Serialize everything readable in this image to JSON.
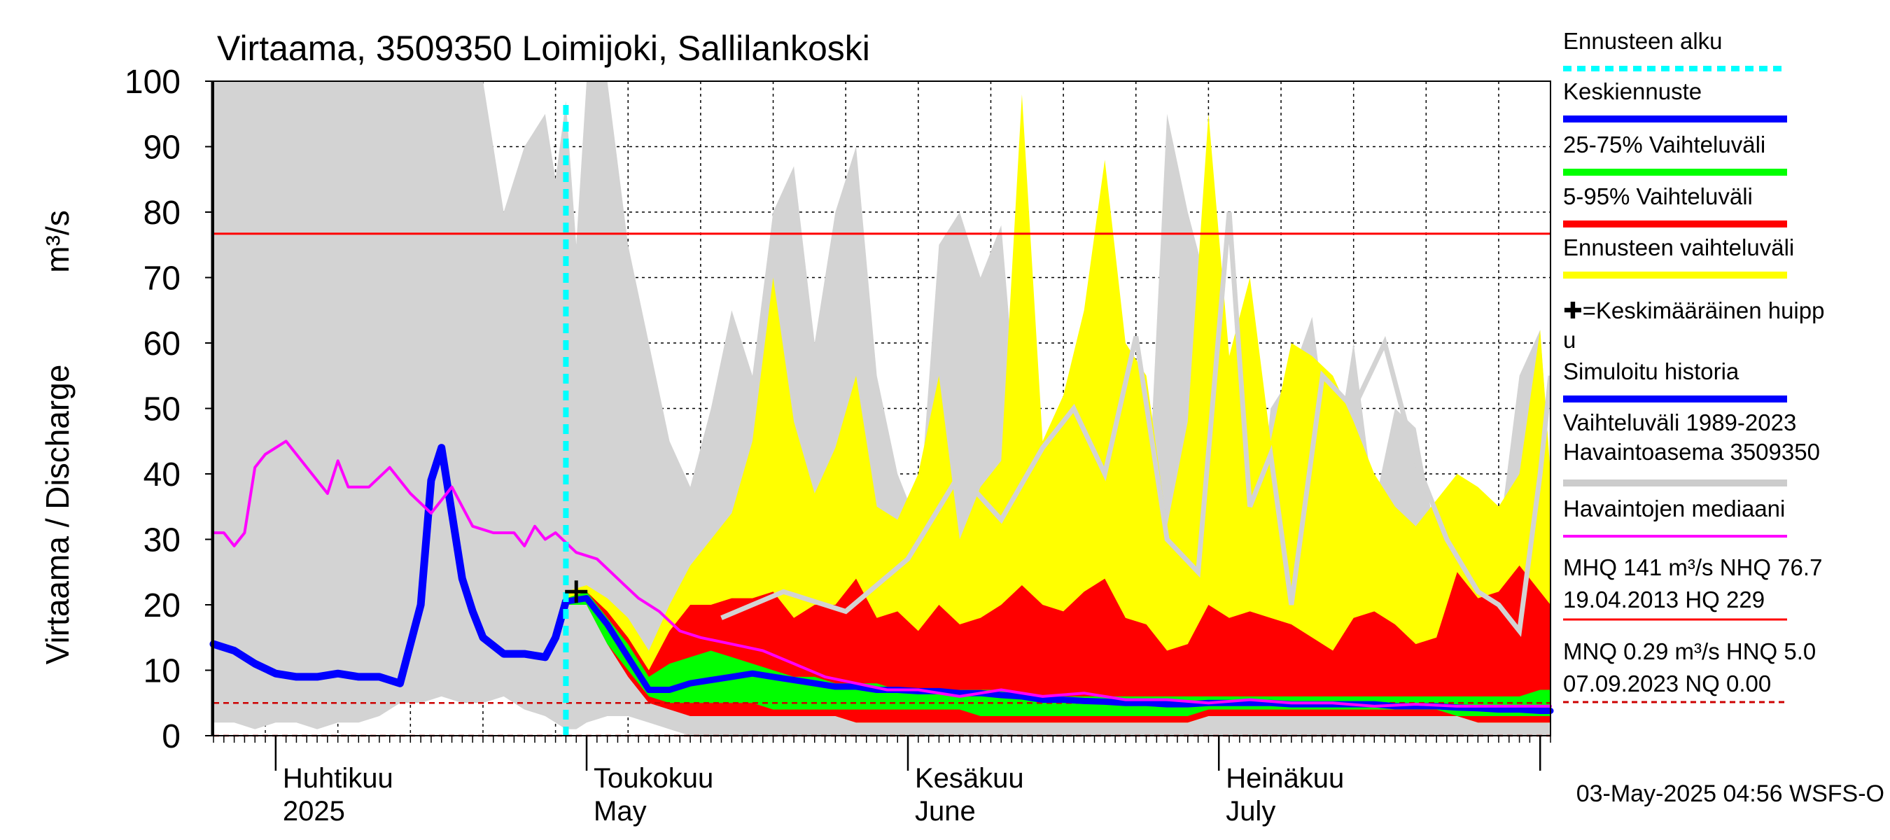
{
  "chart_data": {
    "type": "area",
    "title": "Virtaama, 3509350 Loimijoki, Sallilankoski",
    "ylabel": "Virtaama / Discharge",
    "yunit": "m³/s",
    "ylim": [
      0,
      100
    ],
    "yticks": [
      0,
      10,
      20,
      30,
      40,
      50,
      60,
      70,
      80,
      90,
      100
    ],
    "xlim": [
      "2025-03-26",
      "2025-08-02"
    ],
    "month_labels": [
      {
        "fi": "Huhtikuu",
        "en": "2025",
        "date": "2025-04-01"
      },
      {
        "fi": "Toukokuu",
        "en": "May",
        "date": "2025-05-01"
      },
      {
        "fi": "Kesäkuu",
        "en": "June",
        "date": "2025-06-01"
      },
      {
        "fi": "Heinäkuu",
        "en": "July",
        "date": "2025-07-01"
      }
    ],
    "forecast_start": "2025-04-29",
    "mean_peak": {
      "date": "2025-04-30",
      "value": 22
    },
    "reference_lines": [
      {
        "name": "NHQ",
        "value": 76.7,
        "style": "solid",
        "color": "#ff0000"
      },
      {
        "name": "HNQ",
        "value": 5.0,
        "style": "dashed",
        "color": "#cc0000"
      },
      {
        "name": "NQ",
        "value": 0.0,
        "style": "dashed",
        "color": "#cc0000"
      }
    ],
    "history_range": {
      "name": "Vaihteluväli 1989-2023 Havaintoasema 3509350",
      "x": [
        "2025-03-26",
        "2025-03-28",
        "2025-03-30",
        "2025-04-01",
        "2025-04-03",
        "2025-04-05",
        "2025-04-07",
        "2025-04-09",
        "2025-04-11",
        "2025-04-13",
        "2025-04-15",
        "2025-04-17",
        "2025-04-19",
        "2025-04-21",
        "2025-04-23",
        "2025-04-25",
        "2025-04-27",
        "2025-04-28",
        "2025-04-29",
        "2025-04-30",
        "2025-05-01",
        "2025-05-03",
        "2025-05-05",
        "2025-05-07",
        "2025-05-09",
        "2025-05-11",
        "2025-05-13",
        "2025-05-15",
        "2025-05-17",
        "2025-05-19",
        "2025-05-21",
        "2025-05-23",
        "2025-05-25",
        "2025-05-27",
        "2025-05-29",
        "2025-05-31",
        "2025-06-02",
        "2025-06-04",
        "2025-06-06",
        "2025-06-08",
        "2025-06-10",
        "2025-06-12",
        "2025-06-14",
        "2025-06-16",
        "2025-06-18",
        "2025-06-20",
        "2025-06-22",
        "2025-06-24",
        "2025-06-26",
        "2025-06-28",
        "2025-06-30",
        "2025-07-02",
        "2025-07-04",
        "2025-07-06",
        "2025-07-08",
        "2025-07-10",
        "2025-07-12",
        "2025-07-14",
        "2025-07-16",
        "2025-07-18",
        "2025-07-20",
        "2025-07-22",
        "2025-07-24",
        "2025-07-26",
        "2025-07-28",
        "2025-07-30",
        "2025-08-01",
        "2025-08-02"
      ],
      "low": [
        2,
        2,
        1,
        2,
        2,
        1,
        2,
        2,
        3,
        5,
        5,
        6,
        5,
        5,
        6,
        4,
        3,
        2,
        1,
        1,
        2,
        3,
        3,
        2,
        1,
        0,
        0,
        0,
        0,
        0,
        0,
        0,
        0,
        0,
        0,
        0,
        0,
        0,
        0,
        0,
        0,
        0,
        0,
        0,
        0,
        0,
        0,
        0,
        0,
        0,
        0,
        0,
        0,
        0,
        0,
        0,
        0,
        0,
        0,
        0,
        0,
        0,
        0,
        0,
        0,
        0,
        0,
        0
      ],
      "high": [
        100,
        100,
        100,
        100,
        100,
        100,
        100,
        100,
        100,
        100,
        100,
        100,
        100,
        100,
        80,
        90,
        95,
        85,
        97,
        75,
        100,
        100,
        75,
        60,
        45,
        38,
        50,
        65,
        55,
        80,
        87,
        60,
        80,
        90,
        55,
        40,
        32,
        75,
        80,
        70,
        78,
        40,
        28,
        35,
        55,
        68,
        38,
        30,
        95,
        80,
        68,
        55,
        20,
        50,
        55,
        64,
        40,
        60,
        35,
        50,
        47,
        30,
        33,
        20,
        30,
        55,
        62,
        40
      ],
      "median": [
        null,
        null,
        null,
        null,
        null,
        null,
        null,
        null,
        null,
        null,
        null,
        null,
        null,
        null,
        null,
        null,
        null,
        null,
        null,
        null,
        null,
        null,
        null,
        null,
        null,
        null,
        null,
        null,
        null,
        null,
        null,
        null,
        null,
        null,
        null,
        null,
        null,
        null,
        null,
        null,
        null,
        null,
        null,
        null,
        null,
        null,
        null,
        null,
        null,
        null,
        null,
        null,
        null,
        null,
        null,
        null,
        null,
        null,
        null,
        null,
        null,
        null,
        null,
        null,
        null,
        null,
        null,
        null
      ]
    },
    "history_range_outline": {
      "x": [
        "2025-05-14",
        "2025-05-20",
        "2025-05-26",
        "2025-06-01",
        "2025-06-06",
        "2025-06-10",
        "2025-06-14",
        "2025-06-17",
        "2025-06-20",
        "2025-06-23",
        "2025-06-26",
        "2025-06-29",
        "2025-07-02",
        "2025-07-04",
        "2025-07-06",
        "2025-07-08",
        "2025-07-11",
        "2025-07-14",
        "2025-07-17",
        "2025-07-20",
        "2025-07-23",
        "2025-07-26",
        "2025-07-28",
        "2025-07-30",
        "2025-08-01",
        "2025-08-02"
      ],
      "values": [
        18,
        22,
        19,
        27,
        40,
        33,
        44,
        50,
        40,
        61,
        30,
        25,
        80,
        35,
        43,
        20,
        55,
        50,
        60,
        42,
        30,
        22,
        20,
        16,
        40,
        55
      ]
    },
    "forecast_envelope": {
      "name": "Ennusteen vaihteluväli",
      "x": [
        "2025-04-29",
        "2025-05-01",
        "2025-05-03",
        "2025-05-05",
        "2025-05-07",
        "2025-05-09",
        "2025-05-11",
        "2025-05-13",
        "2025-05-15",
        "2025-05-17",
        "2025-05-19",
        "2025-05-21",
        "2025-05-23",
        "2025-05-25",
        "2025-05-27",
        "2025-05-29",
        "2025-05-31",
        "2025-06-02",
        "2025-06-04",
        "2025-06-06",
        "2025-06-08",
        "2025-06-10",
        "2025-06-12",
        "2025-06-14",
        "2025-06-16",
        "2025-06-18",
        "2025-06-20",
        "2025-06-22",
        "2025-06-24",
        "2025-06-26",
        "2025-06-28",
        "2025-06-30",
        "2025-07-02",
        "2025-07-04",
        "2025-07-06",
        "2025-07-08",
        "2025-07-10",
        "2025-07-12",
        "2025-07-14",
        "2025-07-16",
        "2025-07-18",
        "2025-07-20",
        "2025-07-22",
        "2025-07-24",
        "2025-07-26",
        "2025-07-28",
        "2025-07-30",
        "2025-08-01",
        "2025-08-02"
      ],
      "low": [
        20,
        20,
        15,
        10,
        6,
        4,
        4,
        4,
        3,
        3,
        3,
        3,
        3,
        3,
        2,
        2,
        2,
        2,
        2,
        2,
        2,
        2,
        2,
        2,
        2,
        2,
        2,
        2,
        2,
        2,
        2,
        3,
        3,
        3,
        3,
        3,
        3,
        3,
        3,
        3,
        3,
        3,
        3,
        3,
        2,
        2,
        2,
        2,
        2
      ],
      "high": [
        22,
        23,
        21,
        18,
        13,
        20,
        26,
        30,
        34,
        45,
        70,
        48,
        37,
        44,
        55,
        35,
        33,
        40,
        55,
        30,
        38,
        42,
        98,
        45,
        52,
        65,
        88,
        60,
        55,
        32,
        48,
        95,
        58,
        70,
        45,
        60,
        58,
        55,
        48,
        40,
        35,
        32,
        36,
        40,
        38,
        35,
        40,
        62,
        40
      ]
    },
    "band_5_95": {
      "name": "5-95% Vaihteluväli",
      "low": [
        20,
        20,
        14,
        9,
        5,
        4,
        3,
        3,
        3,
        3,
        3,
        3,
        3,
        3,
        2,
        2,
        2,
        2,
        2,
        2,
        2,
        2,
        2,
        2,
        2,
        2,
        2,
        2,
        2,
        2,
        2,
        3,
        3,
        3,
        3,
        3,
        3,
        3,
        3,
        3,
        3,
        3,
        3,
        3,
        2,
        2,
        2,
        2,
        2
      ],
      "high": [
        21,
        22,
        19,
        15,
        10,
        16,
        20,
        20,
        21,
        21,
        22,
        18,
        20,
        20,
        24,
        18,
        19,
        16,
        20,
        17,
        18,
        20,
        23,
        20,
        19,
        22,
        24,
        18,
        17,
        13,
        14,
        20,
        18,
        19,
        18,
        17,
        15,
        13,
        18,
        19,
        17,
        14,
        15,
        25,
        21,
        22,
        26,
        22,
        20
      ]
    },
    "band_25_75": {
      "name": "25-75% Vaihteluväli",
      "low": [
        20,
        20,
        14,
        10,
        6,
        5,
        5,
        5,
        5,
        5,
        4,
        4,
        4,
        4,
        4,
        4,
        4,
        4,
        4,
        4,
        3,
        3,
        3,
        3,
        3,
        3,
        3,
        3,
        3,
        3,
        3,
        4,
        4,
        4,
        4,
        4,
        4,
        4,
        4,
        4,
        4,
        4,
        4,
        3,
        3,
        3,
        3,
        3,
        3
      ],
      "high": [
        21,
        22,
        18,
        14,
        9,
        11,
        12,
        13,
        12,
        11,
        10,
        9,
        9,
        8,
        8,
        8,
        7,
        7,
        7,
        7,
        7,
        7,
        6,
        6,
        6,
        6,
        6,
        6,
        6,
        6,
        6,
        6,
        6,
        6,
        6,
        6,
        6,
        6,
        6,
        6,
        6,
        6,
        6,
        6,
        6,
        6,
        6,
        7,
        7
      ]
    },
    "series": [
      {
        "name": "Keskiennuste",
        "color": "#0000ff",
        "x": [
          "2025-04-29",
          "2025-05-01",
          "2025-05-03",
          "2025-05-05",
          "2025-05-07",
          "2025-05-09",
          "2025-05-11",
          "2025-05-13",
          "2025-05-15",
          "2025-05-17",
          "2025-05-19",
          "2025-05-21",
          "2025-05-23",
          "2025-05-25",
          "2025-05-27",
          "2025-05-29",
          "2025-05-31",
          "2025-06-02",
          "2025-06-04",
          "2025-06-06",
          "2025-06-08",
          "2025-06-10",
          "2025-06-12",
          "2025-06-14",
          "2025-06-16",
          "2025-06-18",
          "2025-06-20",
          "2025-06-22",
          "2025-06-24",
          "2025-06-26",
          "2025-06-28",
          "2025-06-30",
          "2025-07-02",
          "2025-07-04",
          "2025-07-06",
          "2025-07-08",
          "2025-07-10",
          "2025-07-12",
          "2025-07-14",
          "2025-07-16",
          "2025-07-18",
          "2025-07-20",
          "2025-07-22",
          "2025-07-24",
          "2025-07-26",
          "2025-07-28",
          "2025-07-30",
          "2025-08-01",
          "2025-08-02"
        ],
        "values": [
          20.5,
          21,
          17,
          12,
          7,
          7,
          8,
          8.5,
          9,
          9.5,
          9,
          8.5,
          8,
          7.5,
          7.5,
          7,
          7,
          6.8,
          6.8,
          6.5,
          6.5,
          6.2,
          6,
          5.5,
          5.5,
          5.3,
          5.2,
          5,
          5,
          4.8,
          4.8,
          5,
          5,
          5,
          5,
          4.8,
          4.8,
          4.8,
          4.8,
          4.8,
          4.5,
          4.5,
          4.5,
          4.3,
          4.2,
          4,
          4,
          3.8,
          3.8
        ]
      },
      {
        "name": "Simuloitu historia",
        "color": "#0000ff",
        "x": [
          "2025-03-26",
          "2025-03-28",
          "2025-03-30",
          "2025-04-01",
          "2025-04-03",
          "2025-04-05",
          "2025-04-07",
          "2025-04-09",
          "2025-04-11",
          "2025-04-13",
          "2025-04-15",
          "2025-04-16",
          "2025-04-17",
          "2025-04-18",
          "2025-04-19",
          "2025-04-20",
          "2025-04-21",
          "2025-04-23",
          "2025-04-25",
          "2025-04-27",
          "2025-04-28",
          "2025-04-29"
        ],
        "values": [
          14,
          13,
          11,
          9.5,
          9,
          9,
          9.5,
          9,
          9,
          8,
          20,
          39,
          44,
          34,
          24,
          19,
          15,
          12.5,
          12.5,
          12,
          15,
          20.5
        ]
      },
      {
        "name": "Havaintojen mediaani",
        "color": "#ff00ff",
        "x": [
          "2025-03-26",
          "2025-03-27",
          "2025-03-28",
          "2025-03-29",
          "2025-03-30",
          "2025-03-31",
          "2025-04-02",
          "2025-04-04",
          "2025-04-06",
          "2025-04-07",
          "2025-04-08",
          "2025-04-09",
          "2025-04-10",
          "2025-04-12",
          "2025-04-14",
          "2025-04-16",
          "2025-04-18",
          "2025-04-20",
          "2025-04-22",
          "2025-04-24",
          "2025-04-25",
          "2025-04-26",
          "2025-04-27",
          "2025-04-28",
          "2025-04-30",
          "2025-05-02",
          "2025-05-04",
          "2025-05-06",
          "2025-05-08",
          "2025-05-10",
          "2025-05-12",
          "2025-05-15",
          "2025-05-18",
          "2025-05-21",
          "2025-05-24",
          "2025-05-27",
          "2025-05-30",
          "2025-06-02",
          "2025-06-06",
          "2025-06-10",
          "2025-06-14",
          "2025-06-18",
          "2025-06-22",
          "2025-06-26",
          "2025-06-30",
          "2025-07-04",
          "2025-07-08",
          "2025-07-12",
          "2025-07-16",
          "2025-07-20",
          "2025-07-24",
          "2025-07-28",
          "2025-08-02"
        ],
        "values": [
          31,
          31,
          29,
          31,
          41,
          43,
          45,
          41,
          37,
          42,
          38,
          38,
          38,
          41,
          37,
          34,
          38,
          32,
          31,
          31,
          29,
          32,
          30,
          31,
          28,
          27,
          24,
          21,
          19,
          16,
          15,
          14,
          13,
          11,
          9,
          8,
          7,
          7,
          6,
          7,
          6,
          6.5,
          5.5,
          5.5,
          5,
          5.5,
          5,
          5,
          4.5,
          4.8,
          4.5,
          4.5,
          4.5
        ]
      }
    ],
    "legend": {
      "placement": "right",
      "items": [
        {
          "label": "Ennusteen alku",
          "color": "#00ffff",
          "style": "dashed"
        },
        {
          "label": "Keskiennuste",
          "color": "#0000ff",
          "style": "solid"
        },
        {
          "label": "25-75% Vaihteluväli",
          "color": "#00ff00",
          "style": "solid"
        },
        {
          "label": "5-95% Vaihteluväli",
          "color": "#ff0000",
          "style": "solid"
        },
        {
          "label": "Ennusteen vaihteluväli",
          "color": "#ffff00",
          "style": "solid"
        },
        {
          "label": "✚=Keskimääräinen huippu",
          "line1": "✚=Keskimääräinen huipp",
          "line2": "u",
          "color": "#000000",
          "style": "none"
        },
        {
          "label": "Simuloitu historia",
          "color": "#0000ff",
          "style": "solid"
        },
        {
          "label": "Vaihteluväli 1989-2023",
          "line2": " Havaintoasema 3509350",
          "color": "#cccccc",
          "style": "solid"
        },
        {
          "label": "Havaintojen mediaani",
          "color": "#ff00ff",
          "style": "solid"
        }
      ]
    },
    "stats": {
      "line1": "MHQ  141 m³/s NHQ 76.7",
      "line2": "19.04.2013 HQ  229",
      "line3": "MNQ 0.29 m³/s HNQ  5.0",
      "line4": "07.09.2023 NQ 0.00"
    },
    "timestamp": "03-May-2025 04:56 WSFS-O"
  }
}
